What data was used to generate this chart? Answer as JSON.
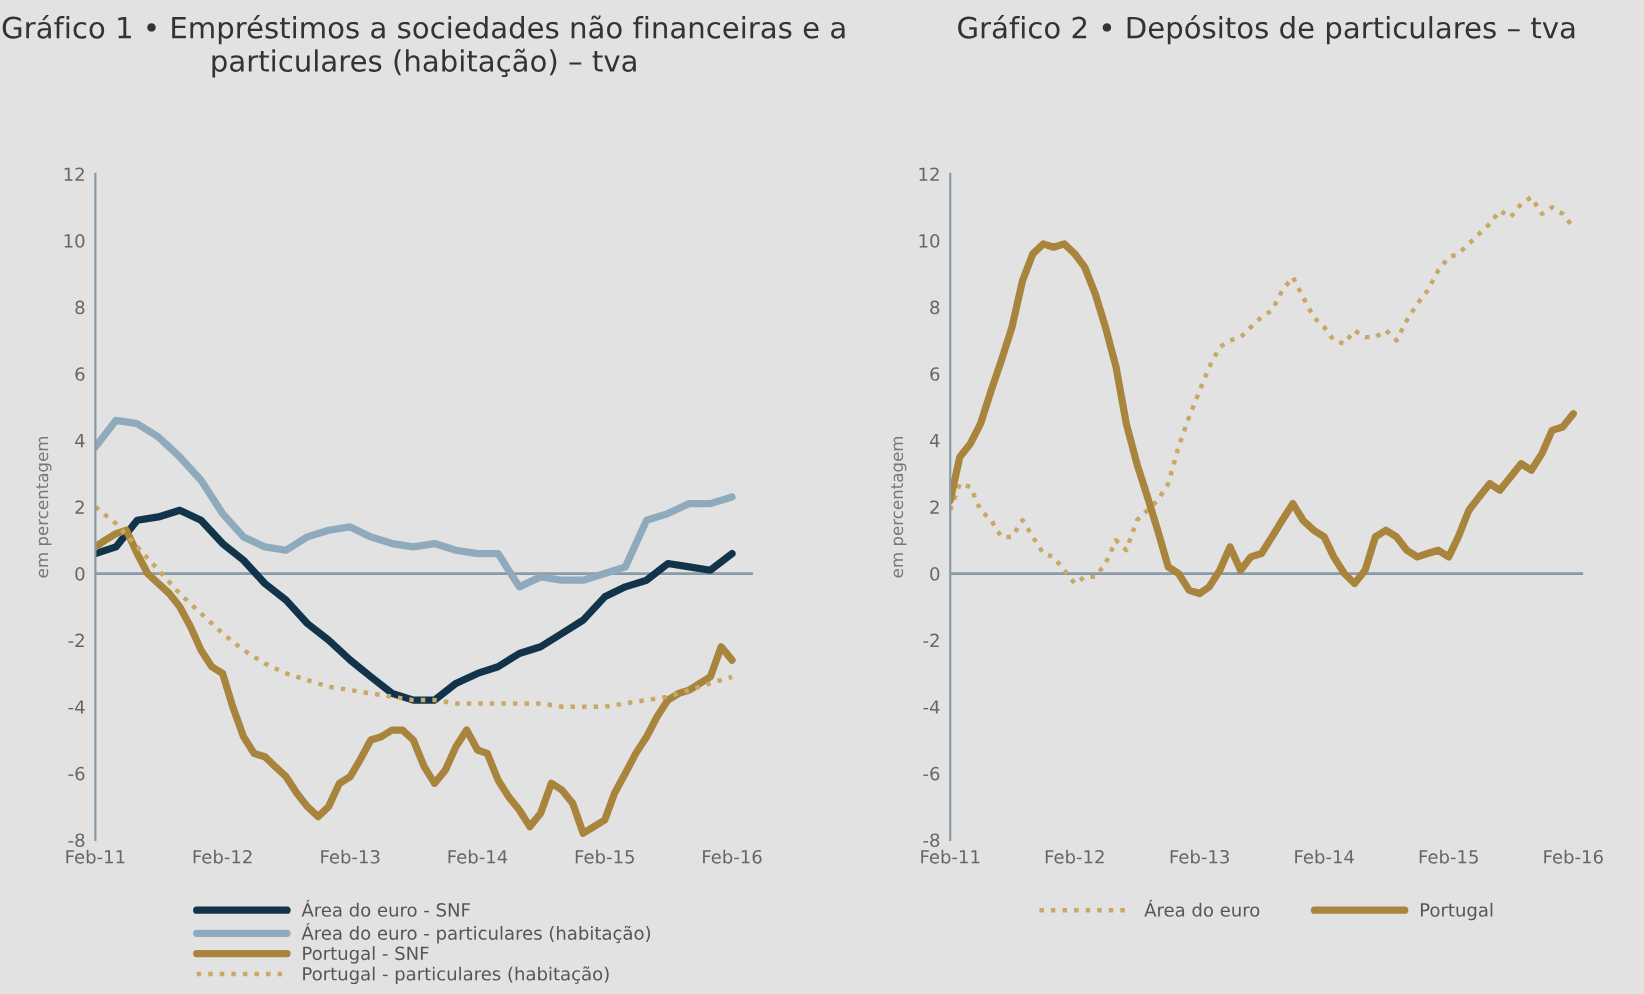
{
  "chart_data": [
    {
      "type": "line",
      "title": "Gráfico 1 • Empréstimos a sociedades não financeiras e a particulares (habitação) – tva",
      "ylabel": "em percentagem",
      "xlim": [
        "2011-02",
        "2016-04"
      ],
      "ylim": [
        -8,
        12
      ],
      "xticks": [
        {
          "value": "2011-02",
          "label": "Feb-11"
        },
        {
          "value": "2012-02",
          "label": "Feb-12"
        },
        {
          "value": "2013-02",
          "label": "Feb-13"
        },
        {
          "value": "2014-02",
          "label": "Feb-14"
        },
        {
          "value": "2015-02",
          "label": "Feb-15"
        },
        {
          "value": "2016-02",
          "label": "Feb-16"
        }
      ],
      "yticks": [
        -8,
        -6,
        -4,
        -2,
        0,
        2,
        4,
        6,
        8,
        10,
        12
      ],
      "ref_lines": [
        {
          "axis": "y",
          "value": 0,
          "color": "#8a9ba8"
        }
      ],
      "legend": "bottom",
      "series": [
        {
          "name": "Área do euro - SNF",
          "color": "#12344a",
          "line_style": "solid",
          "x": [
            "2011-02",
            "2011-04",
            "2011-06",
            "2011-08",
            "2011-10",
            "2011-12",
            "2012-02",
            "2012-04",
            "2012-06",
            "2012-08",
            "2012-10",
            "2012-12",
            "2013-02",
            "2013-04",
            "2013-06",
            "2013-08",
            "2013-10",
            "2013-12",
            "2014-02",
            "2014-04",
            "2014-06",
            "2014-08",
            "2014-10",
            "2014-12",
            "2015-02",
            "2015-04",
            "2015-06",
            "2015-08",
            "2015-10",
            "2015-12",
            "2016-02"
          ],
          "values": [
            0.6,
            0.8,
            1.6,
            1.7,
            1.9,
            1.6,
            0.9,
            0.4,
            -0.3,
            -0.8,
            -1.5,
            -2.0,
            -2.6,
            -3.1,
            -3.6,
            -3.8,
            -3.8,
            -3.3,
            -3.0,
            -2.8,
            -2.4,
            -2.2,
            -1.8,
            -1.4,
            -0.7,
            -0.4,
            -0.2,
            0.3,
            0.2,
            0.1,
            0.6
          ]
        },
        {
          "name": "Área do euro - particulares (habitação)",
          "color": "#8fa9bd",
          "line_style": "solid",
          "x": [
            "2011-02",
            "2011-04",
            "2011-06",
            "2011-08",
            "2011-10",
            "2011-12",
            "2012-02",
            "2012-04",
            "2012-06",
            "2012-08",
            "2012-10",
            "2012-12",
            "2013-02",
            "2013-04",
            "2013-06",
            "2013-08",
            "2013-10",
            "2013-12",
            "2014-02",
            "2014-04",
            "2014-06",
            "2014-08",
            "2014-10",
            "2014-12",
            "2015-02",
            "2015-04",
            "2015-06",
            "2015-08",
            "2015-10",
            "2015-12",
            "2016-02"
          ],
          "values": [
            3.8,
            4.6,
            4.5,
            4.1,
            3.5,
            2.8,
            1.8,
            1.1,
            0.8,
            0.7,
            1.1,
            1.3,
            1.4,
            1.1,
            0.9,
            0.8,
            0.9,
            0.7,
            0.6,
            0.6,
            -0.4,
            -0.1,
            -0.2,
            -0.2,
            0.0,
            0.2,
            1.6,
            1.8,
            2.1,
            2.1,
            2.3
          ]
        },
        {
          "name": "Portugal - SNF",
          "color": "#a8843c",
          "line_style": "solid",
          "x": [
            "2011-02",
            "2011-03",
            "2011-04",
            "2011-05",
            "2011-06",
            "2011-07",
            "2011-08",
            "2011-09",
            "2011-10",
            "2011-11",
            "2011-12",
            "2012-01",
            "2012-02",
            "2012-03",
            "2012-04",
            "2012-05",
            "2012-06",
            "2012-07",
            "2012-08",
            "2012-09",
            "2012-10",
            "2012-11",
            "2012-12",
            "2013-01",
            "2013-02",
            "2013-03",
            "2013-04",
            "2013-05",
            "2013-06",
            "2013-07",
            "2013-08",
            "2013-09",
            "2013-10",
            "2013-11",
            "2013-12",
            "2014-01",
            "2014-02",
            "2014-03",
            "2014-04",
            "2014-05",
            "2014-06",
            "2014-07",
            "2014-08",
            "2014-09",
            "2014-10",
            "2014-11",
            "2014-12",
            "2015-01",
            "2015-02",
            "2015-03",
            "2015-04",
            "2015-05",
            "2015-06",
            "2015-07",
            "2015-08",
            "2015-09",
            "2015-10",
            "2015-11",
            "2015-12",
            "2016-01",
            "2016-02"
          ],
          "values": [
            0.8,
            1.0,
            1.2,
            1.3,
            0.6,
            0.0,
            -0.3,
            -0.6,
            -1.0,
            -1.6,
            -2.3,
            -2.8,
            -3.0,
            -4.0,
            -4.9,
            -5.4,
            -5.5,
            -5.8,
            -6.1,
            -6.6,
            -7.0,
            -7.3,
            -7.0,
            -6.3,
            -6.1,
            -5.6,
            -5.0,
            -4.9,
            -4.7,
            -4.7,
            -5.0,
            -5.8,
            -6.3,
            -5.9,
            -5.2,
            -4.7,
            -5.3,
            -5.4,
            -6.2,
            -6.7,
            -7.1,
            -7.6,
            -7.2,
            -6.3,
            -6.5,
            -6.9,
            -7.8,
            -7.6,
            -7.4,
            -6.6,
            -6.0,
            -5.4,
            -4.9,
            -4.3,
            -3.8,
            -3.6,
            -3.5,
            -3.3,
            -3.1,
            -2.2,
            -2.6
          ]
        },
        {
          "name": "Portugal - particulares (habitação)",
          "color": "#c9a865",
          "line_style": "dotted",
          "x": [
            "2011-02",
            "2011-04",
            "2011-06",
            "2011-08",
            "2011-10",
            "2011-12",
            "2012-02",
            "2012-04",
            "2012-06",
            "2012-08",
            "2012-10",
            "2012-12",
            "2013-02",
            "2013-04",
            "2013-06",
            "2013-08",
            "2013-10",
            "2013-12",
            "2014-02",
            "2014-04",
            "2014-06",
            "2014-08",
            "2014-10",
            "2014-12",
            "2015-02",
            "2015-04",
            "2015-06",
            "2015-08",
            "2015-10",
            "2015-12",
            "2016-02"
          ],
          "values": [
            2.0,
            1.5,
            0.8,
            0.1,
            -0.6,
            -1.2,
            -1.8,
            -2.3,
            -2.7,
            -3.0,
            -3.2,
            -3.4,
            -3.5,
            -3.6,
            -3.7,
            -3.8,
            -3.8,
            -3.9,
            -3.9,
            -3.9,
            -3.9,
            -3.9,
            -4.0,
            -4.0,
            -4.0,
            -3.9,
            -3.8,
            -3.7,
            -3.5,
            -3.3,
            -3.1
          ]
        }
      ]
    },
    {
      "type": "line",
      "title": "Gráfico 2 • Depósitos de particulares – tva",
      "ylabel": "em percentagem",
      "xlim": [
        "2011-02",
        "2016-03"
      ],
      "ylim": [
        -8,
        12
      ],
      "xticks": [
        {
          "value": "2011-02",
          "label": "Feb-11"
        },
        {
          "value": "2012-02",
          "label": "Feb-12"
        },
        {
          "value": "2013-02",
          "label": "Feb-13"
        },
        {
          "value": "2014-02",
          "label": "Feb-14"
        },
        {
          "value": "2015-02",
          "label": "Feb-15"
        },
        {
          "value": "2016-02",
          "label": "Feb-16"
        }
      ],
      "yticks": [
        -8,
        -6,
        -4,
        -2,
        0,
        2,
        4,
        6,
        8,
        10,
        12
      ],
      "ref_lines": [
        {
          "axis": "y",
          "value": 0,
          "color": "#8a9ba8"
        }
      ],
      "legend": "bottom",
      "series": [
        {
          "name": "Área do euro",
          "color": "#c9a865",
          "line_style": "dotted",
          "x": [
            "2011-02",
            "2011-03",
            "2011-04",
            "2011-05",
            "2011-06",
            "2011-07",
            "2011-08",
            "2011-09",
            "2011-10",
            "2011-11",
            "2011-12",
            "2012-01",
            "2012-02",
            "2012-03",
            "2012-04",
            "2012-05",
            "2012-06",
            "2012-07",
            "2012-08",
            "2012-09",
            "2012-10",
            "2012-11",
            "2012-12",
            "2013-01",
            "2013-02",
            "2013-03",
            "2013-04",
            "2013-05",
            "2013-06",
            "2013-07",
            "2013-08",
            "2013-09",
            "2013-10",
            "2013-11",
            "2013-12",
            "2014-01",
            "2014-02",
            "2014-03",
            "2014-04",
            "2014-05",
            "2014-06",
            "2014-07",
            "2014-08",
            "2014-09",
            "2014-10",
            "2014-11",
            "2014-12",
            "2015-01",
            "2015-02",
            "2015-03",
            "2015-04",
            "2015-05",
            "2015-06",
            "2015-07",
            "2015-08",
            "2015-09",
            "2015-10",
            "2015-11",
            "2015-12",
            "2016-01",
            "2016-02"
          ],
          "values": [
            1.9,
            2.7,
            2.6,
            1.9,
            1.6,
            1.1,
            1.1,
            1.6,
            1.1,
            0.6,
            0.5,
            0.1,
            -0.3,
            -0.1,
            -0.1,
            0.3,
            1.0,
            0.7,
            1.6,
            1.9,
            2.2,
            2.7,
            3.8,
            4.7,
            5.5,
            6.2,
            6.8,
            7.0,
            7.1,
            7.4,
            7.7,
            7.9,
            8.5,
            8.9,
            8.3,
            7.7,
            7.4,
            7.0,
            6.9,
            7.3,
            7.1,
            7.1,
            7.3,
            7.0,
            7.6,
            8.1,
            8.5,
            9.1,
            9.5,
            9.6,
            9.9,
            10.2,
            10.5,
            10.9,
            10.7,
            11.1,
            11.3,
            10.8,
            11.0,
            10.8,
            10.4
          ]
        },
        {
          "name": "Portugal",
          "color": "#a8843c",
          "line_style": "solid",
          "x": [
            "2011-02",
            "2011-03",
            "2011-04",
            "2011-05",
            "2011-06",
            "2011-07",
            "2011-08",
            "2011-09",
            "2011-10",
            "2011-11",
            "2011-12",
            "2012-01",
            "2012-02",
            "2012-03",
            "2012-04",
            "2012-05",
            "2012-06",
            "2012-07",
            "2012-08",
            "2012-09",
            "2012-10",
            "2012-11",
            "2012-12",
            "2013-01",
            "2013-02",
            "2013-03",
            "2013-04",
            "2013-05",
            "2013-06",
            "2013-07",
            "2013-08",
            "2013-09",
            "2013-10",
            "2013-11",
            "2013-12",
            "2014-01",
            "2014-02",
            "2014-03",
            "2014-04",
            "2014-05",
            "2014-06",
            "2014-07",
            "2014-08",
            "2014-09",
            "2014-10",
            "2014-11",
            "2014-12",
            "2015-01",
            "2015-02",
            "2015-03",
            "2015-04",
            "2015-05",
            "2015-06",
            "2015-07",
            "2015-08",
            "2015-09",
            "2015-10",
            "2015-11",
            "2015-12",
            "2016-01",
            "2016-02"
          ],
          "values": [
            2.2,
            3.5,
            3.9,
            4.5,
            5.5,
            6.4,
            7.4,
            8.8,
            9.6,
            9.9,
            9.8,
            9.9,
            9.6,
            9.2,
            8.4,
            7.4,
            6.2,
            4.5,
            3.3,
            2.3,
            1.3,
            0.2,
            0.0,
            -0.5,
            -0.6,
            -0.4,
            0.1,
            0.8,
            0.1,
            0.5,
            0.6,
            1.1,
            1.6,
            2.1,
            1.6,
            1.3,
            1.1,
            0.5,
            0.0,
            -0.3,
            0.1,
            1.1,
            1.3,
            1.1,
            0.7,
            0.5,
            0.6,
            0.7,
            0.5,
            1.1,
            1.9,
            2.3,
            2.7,
            2.5,
            2.9,
            3.3,
            3.1,
            3.6,
            4.3,
            4.4,
            4.8
          ]
        }
      ]
    }
  ]
}
